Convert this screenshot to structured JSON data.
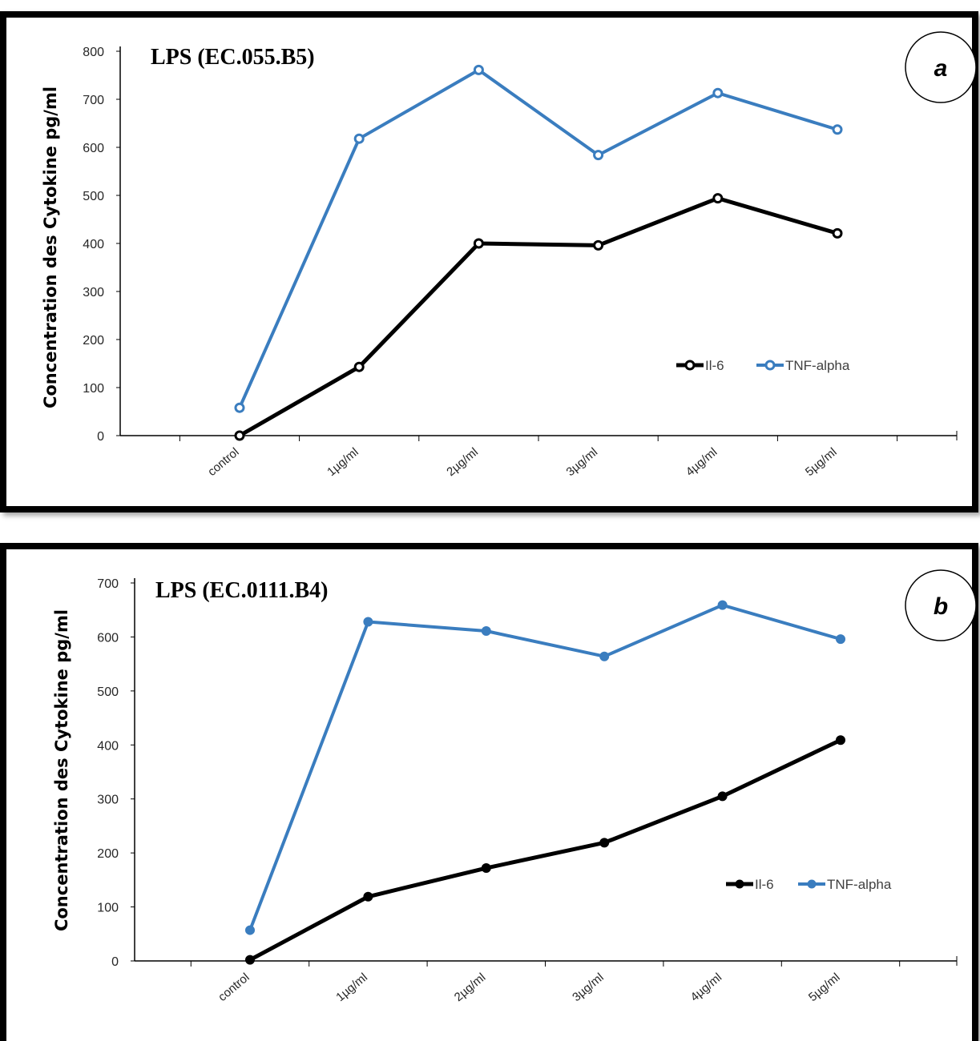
{
  "chart_data": [
    {
      "type": "line",
      "panel_badge": "a",
      "title": "LPS (EC.055.B5)",
      "ylabel": "Concentration des Cytokine pg/ml",
      "xlabel": "",
      "categories": [
        "control",
        "1µg/ml",
        "2µg/ml",
        "3µg/ml",
        "4µg/ml",
        "5µg/ml"
      ],
      "ylim": [
        0,
        800
      ],
      "yticks": [
        0,
        100,
        200,
        300,
        400,
        500,
        600,
        700,
        800
      ],
      "grid": false,
      "legend_position": "lower-right",
      "marker_style": "open",
      "series": [
        {
          "name": "Il-6",
          "color": "#000000",
          "values": [
            0,
            143,
            400,
            396,
            494,
            421
          ]
        },
        {
          "name": "TNF-alpha",
          "color": "#3a7dbf",
          "values": [
            58,
            618,
            761,
            584,
            713,
            637
          ]
        }
      ]
    },
    {
      "type": "line",
      "panel_badge": "b",
      "title": "LPS (EC.0111.B4)",
      "ylabel": "Concentration des Cytokine pg/ml",
      "xlabel": "",
      "categories": [
        "control",
        "1µg/ml",
        "2µg/ml",
        "3µg/ml",
        "4µg/ml",
        "5µg/ml"
      ],
      "ylim": [
        0,
        700
      ],
      "yticks": [
        0,
        100,
        200,
        300,
        400,
        500,
        600,
        700
      ],
      "grid": false,
      "legend_position": "lower-right",
      "marker_style": "filled",
      "series": [
        {
          "name": "Il-6",
          "color": "#000000",
          "values": [
            2,
            119,
            172,
            219,
            305,
            409
          ]
        },
        {
          "name": "TNF-alpha",
          "color": "#3a7dbf",
          "values": [
            57,
            628,
            611,
            564,
            659,
            596
          ]
        }
      ]
    }
  ]
}
